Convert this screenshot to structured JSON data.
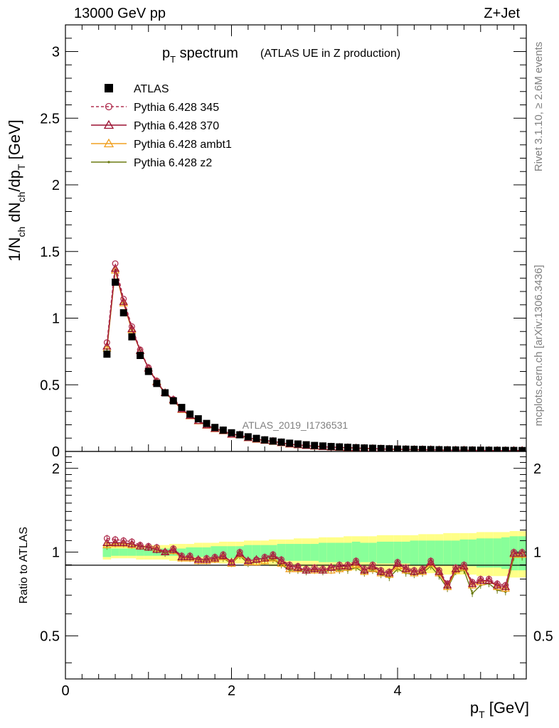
{
  "header": {
    "energy": "13000 GeV pp",
    "process": "Z+Jet"
  },
  "side": {
    "rivet": "Rivet 3.1.10, ≥ 2.6M events",
    "mcplots": "mcplots.cern.ch [arXiv:1306.3436]"
  },
  "plot": {
    "title_main": "p",
    "title_sub": "T",
    "title_main2": " spectrum",
    "title_detail": "(ATLAS UE in Z production)",
    "watermark": "ATLAS_2019_I1736531",
    "ylabel_main": "1/N",
    "ylabel_parts": [
      "ch",
      "dN",
      "ch",
      "/dp",
      "T",
      " [GeV]"
    ],
    "ratio_ylabel": "Ratio to ATLAS",
    "xlabel_main": "p",
    "xlabel_sub": "T",
    "xlabel_unit": " [GeV]"
  },
  "legend": [
    {
      "label": "ATLAS",
      "color": "#000000",
      "marker": "square"
    },
    {
      "label": "Pythia 6.428 345",
      "color": "#b03050",
      "marker": "circle",
      "dash": true
    },
    {
      "label": "Pythia 6.428 370",
      "color": "#9b1030",
      "marker": "triangle"
    },
    {
      "label": "Pythia 6.428 ambt1",
      "color": "#f0a020",
      "marker": "triangle"
    },
    {
      "label": "Pythia 6.428 z2",
      "color": "#6b7a10",
      "marker": "dot"
    }
  ],
  "chart_data": {
    "type": "scatter",
    "xlim": [
      0,
      5.55
    ],
    "ylim": [
      0,
      3.2
    ],
    "ratio_ylim": [
      0.35,
      2.3
    ],
    "ratio_scale": "log",
    "xticks": [
      "0",
      "2",
      "4"
    ],
    "yticks": [
      "0",
      "0.5",
      "1",
      "1.5",
      "2",
      "2.5",
      "3"
    ],
    "ratio_yticks": [
      "0.5",
      "1",
      "2"
    ],
    "x": [
      0.5,
      0.6,
      0.7,
      0.8,
      0.9,
      1.0,
      1.1,
      1.2,
      1.3,
      1.4,
      1.5,
      1.6,
      1.7,
      1.8,
      1.9,
      2.0,
      2.1,
      2.2,
      2.3,
      2.4,
      2.5,
      2.6,
      2.7,
      2.8,
      2.9,
      3.0,
      3.1,
      3.2,
      3.3,
      3.4,
      3.5,
      3.6,
      3.7,
      3.8,
      3.9,
      4.0,
      4.1,
      4.2,
      4.3,
      4.4,
      4.5,
      4.6,
      4.7,
      4.8,
      4.9,
      5.0,
      5.1,
      5.2,
      5.3,
      5.4,
      5.5
    ],
    "atlas": [
      0.73,
      1.27,
      1.04,
      0.86,
      0.72,
      0.6,
      0.51,
      0.44,
      0.38,
      0.33,
      0.28,
      0.245,
      0.21,
      0.18,
      0.16,
      0.14,
      0.125,
      0.11,
      0.098,
      0.087,
      0.078,
      0.07,
      0.062,
      0.056,
      0.05,
      0.045,
      0.041,
      0.037,
      0.034,
      0.031,
      0.028,
      0.026,
      0.024,
      0.022,
      0.02,
      0.018,
      0.017,
      0.016,
      0.015,
      0.014,
      0.013,
      0.012,
      0.011,
      0.011,
      0.01,
      0.0095,
      0.009,
      0.0085,
      0.008,
      0.0075,
      0.007
    ],
    "series": [
      {
        "name": "Pythia 6.428 345",
        "ratio": [
          1.12,
          1.11,
          1.1,
          1.09,
          1.06,
          1.05,
          1.04,
          1.0,
          1.03,
          0.97,
          0.97,
          0.94,
          0.95,
          0.96,
          0.98,
          0.92,
          1.0,
          0.93,
          0.94,
          0.96,
          0.98,
          0.94,
          0.9,
          0.89,
          0.87,
          0.88,
          0.87,
          0.88,
          0.9,
          0.9,
          0.93,
          0.87,
          0.9,
          0.86,
          0.85,
          0.92,
          0.88,
          0.86,
          0.87,
          0.93,
          0.86,
          0.77,
          0.88,
          0.9,
          0.78,
          0.8,
          0.8,
          0.77,
          0.76,
          1.0,
          1.0
        ]
      },
      {
        "name": "Pythia 6.428 370",
        "ratio": [
          1.08,
          1.08,
          1.08,
          1.07,
          1.05,
          1.04,
          1.02,
          1.0,
          1.02,
          0.96,
          0.96,
          0.94,
          0.94,
          0.95,
          0.97,
          0.92,
          0.99,
          0.93,
          0.94,
          0.95,
          0.97,
          0.93,
          0.89,
          0.88,
          0.86,
          0.87,
          0.86,
          0.88,
          0.89,
          0.89,
          0.92,
          0.86,
          0.89,
          0.85,
          0.84,
          0.91,
          0.87,
          0.85,
          0.86,
          0.92,
          0.85,
          0.76,
          0.87,
          0.89,
          0.77,
          0.79,
          0.79,
          0.76,
          0.75,
          0.99,
          0.99
        ]
      },
      {
        "name": "Pythia 6.428 ambt1",
        "ratio": [
          1.06,
          1.07,
          1.07,
          1.06,
          1.05,
          1.04,
          1.03,
          1.0,
          1.01,
          0.95,
          0.95,
          0.93,
          0.93,
          0.94,
          0.96,
          0.91,
          0.98,
          0.92,
          0.92,
          0.93,
          0.95,
          0.91,
          0.87,
          0.87,
          0.86,
          0.86,
          0.86,
          0.86,
          0.87,
          0.88,
          0.9,
          0.85,
          0.87,
          0.84,
          0.83,
          0.89,
          0.86,
          0.84,
          0.85,
          0.91,
          0.84,
          0.75,
          0.86,
          0.88,
          0.76,
          0.78,
          0.79,
          0.75,
          0.74,
          0.98,
          0.98
        ]
      },
      {
        "name": "Pythia 6.428 z2",
        "ratio": [
          1.05,
          1.07,
          1.07,
          1.06,
          1.05,
          1.04,
          1.02,
          0.99,
          1.01,
          0.95,
          0.95,
          0.93,
          0.93,
          0.94,
          0.95,
          0.91,
          0.97,
          0.91,
          0.92,
          0.93,
          0.94,
          0.9,
          0.86,
          0.86,
          0.85,
          0.86,
          0.85,
          0.86,
          0.86,
          0.86,
          0.88,
          0.84,
          0.86,
          0.83,
          0.81,
          0.87,
          0.84,
          0.83,
          0.84,
          0.89,
          0.82,
          0.74,
          0.85,
          0.86,
          0.71,
          0.76,
          0.77,
          0.73,
          0.72,
          0.96,
          0.96
        ]
      }
    ],
    "band_stat": [
      0.04,
      0.03,
      0.03,
      0.03,
      0.03,
      0.03,
      0.03,
      0.03,
      0.03,
      0.03,
      0.04,
      0.04,
      0.04,
      0.05,
      0.05,
      0.05,
      0.05,
      0.06,
      0.06,
      0.06,
      0.06,
      0.07,
      0.07,
      0.07,
      0.07,
      0.07,
      0.08,
      0.08,
      0.08,
      0.08,
      0.09,
      0.08,
      0.08,
      0.09,
      0.09,
      0.09,
      0.09,
      0.1,
      0.1,
      0.1,
      0.1,
      0.1,
      0.1,
      0.11,
      0.11,
      0.12,
      0.12,
      0.12,
      0.13,
      0.14,
      0.14
    ],
    "band_total": [
      0.06,
      0.05,
      0.05,
      0.05,
      0.06,
      0.06,
      0.06,
      0.06,
      0.07,
      0.07,
      0.07,
      0.08,
      0.08,
      0.08,
      0.09,
      0.09,
      0.09,
      0.1,
      0.1,
      0.1,
      0.11,
      0.11,
      0.11,
      0.12,
      0.12,
      0.12,
      0.13,
      0.13,
      0.13,
      0.14,
      0.14,
      0.14,
      0.14,
      0.15,
      0.15,
      0.15,
      0.15,
      0.15,
      0.16,
      0.16,
      0.16,
      0.17,
      0.17,
      0.17,
      0.17,
      0.18,
      0.18,
      0.18,
      0.18,
      0.19,
      0.19
    ]
  }
}
